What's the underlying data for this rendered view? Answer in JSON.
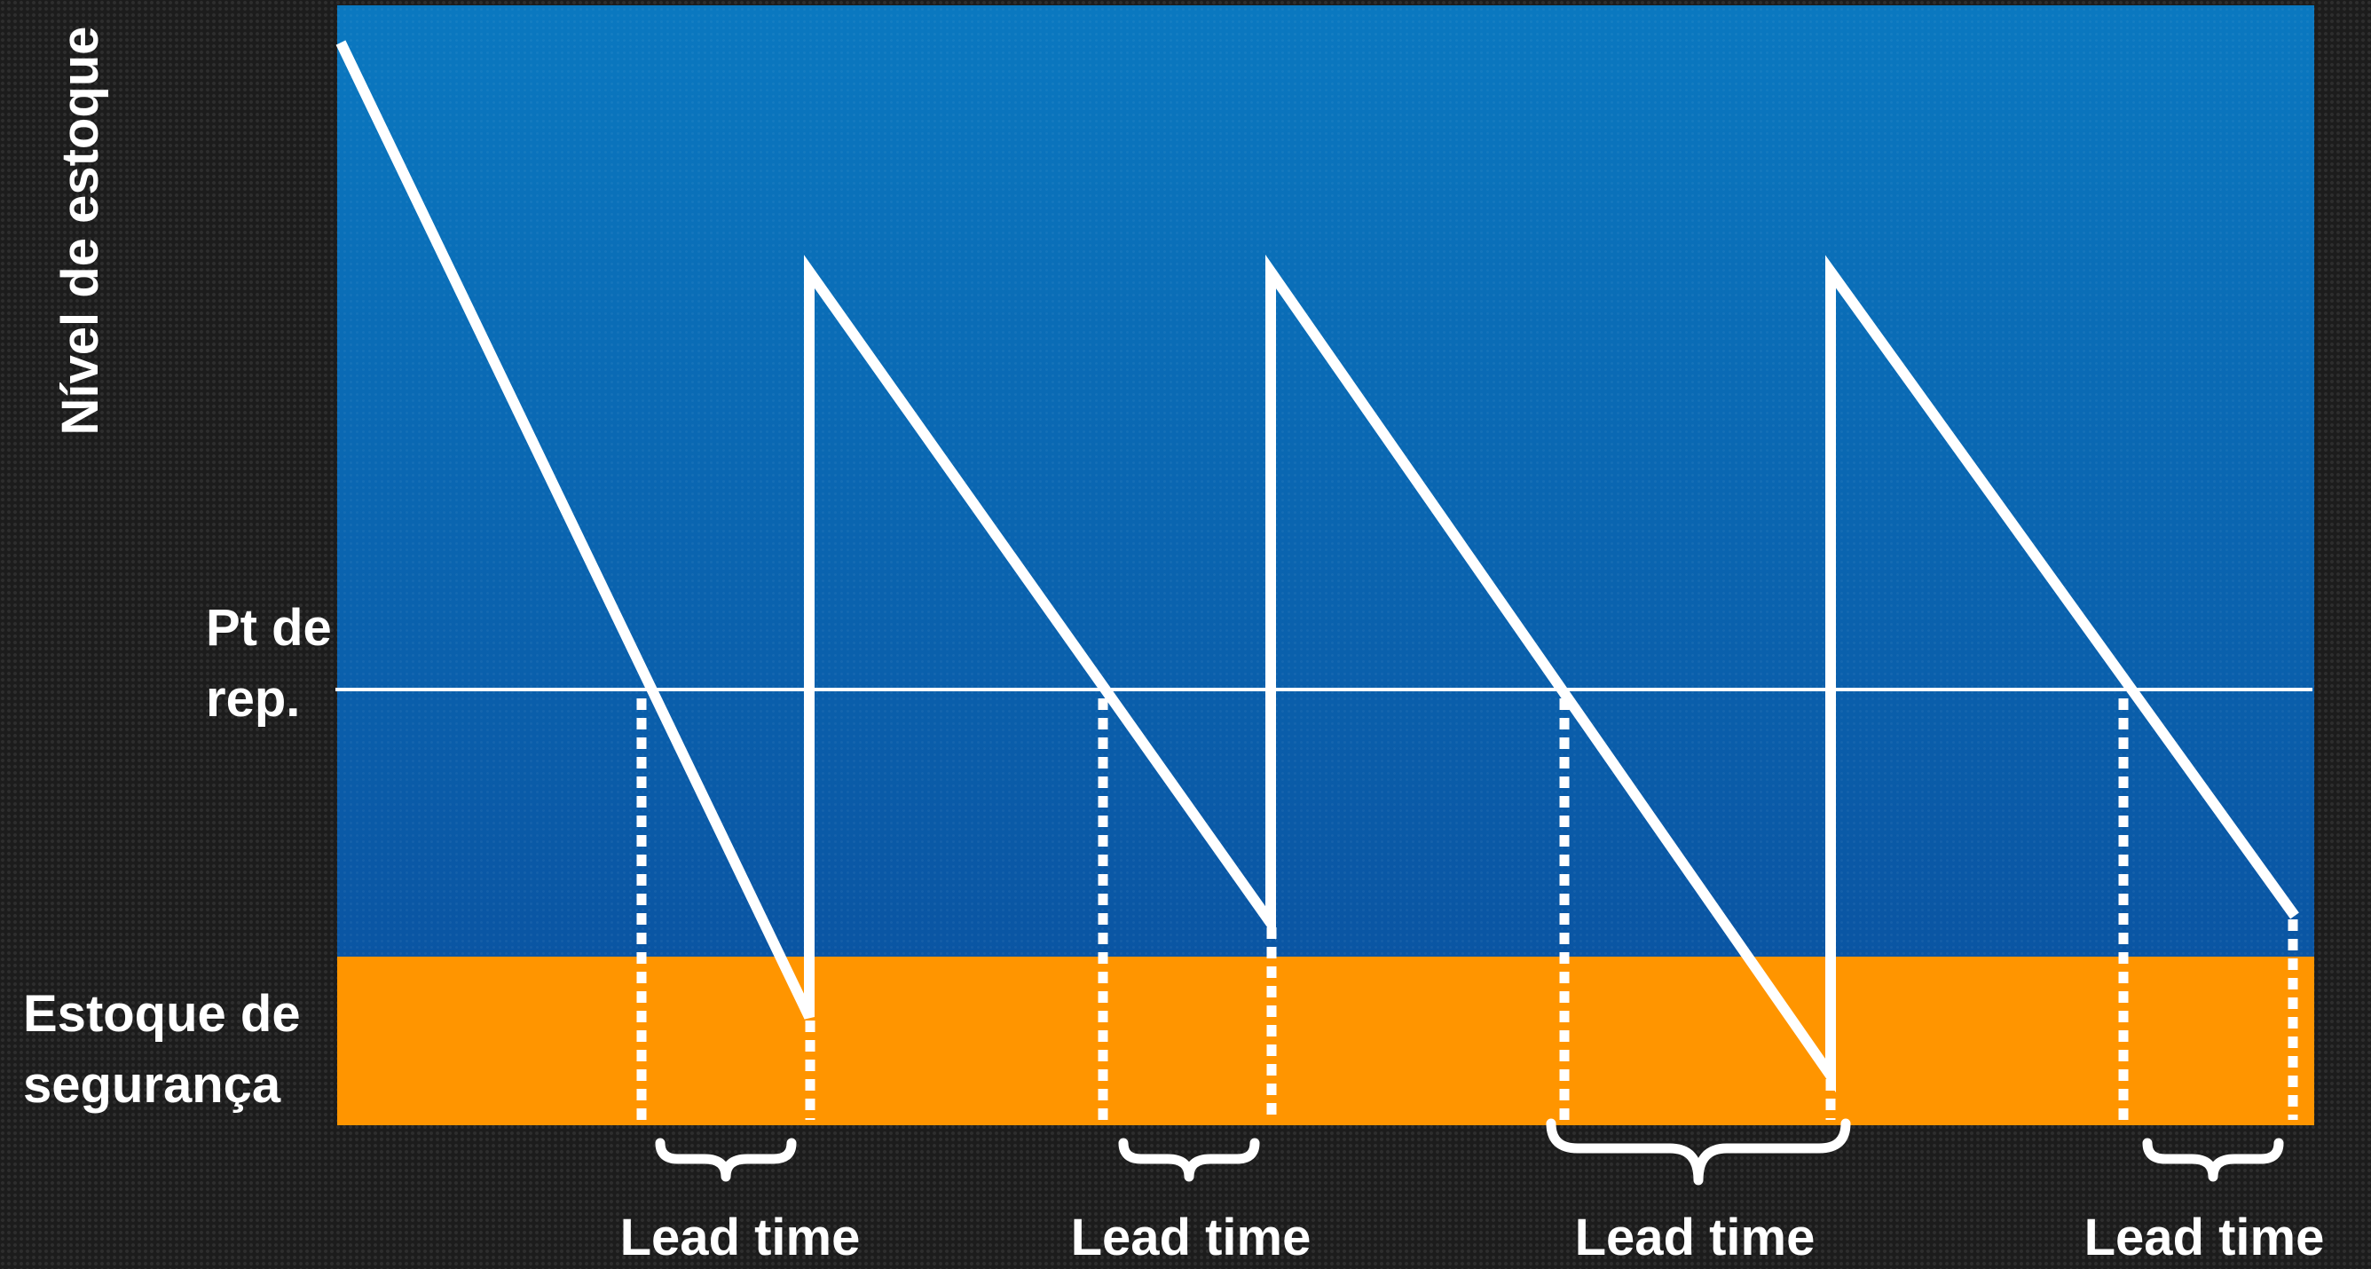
{
  "diagram": {
    "y_axis_label": "Nível de estoque",
    "reorder_point_label": "Pt de rep.",
    "safety_stock_label": "Estoque de segurança",
    "lead_time_labels": [
      "Lead time",
      "Lead time",
      "Lead time",
      "Lead time"
    ],
    "colors": {
      "background": "#1c1c1c",
      "plot_top": "#0a78c0",
      "plot_bottom": "#0a55a3",
      "safety_band": "#ff9500",
      "lines": "#ffffff"
    }
  }
}
